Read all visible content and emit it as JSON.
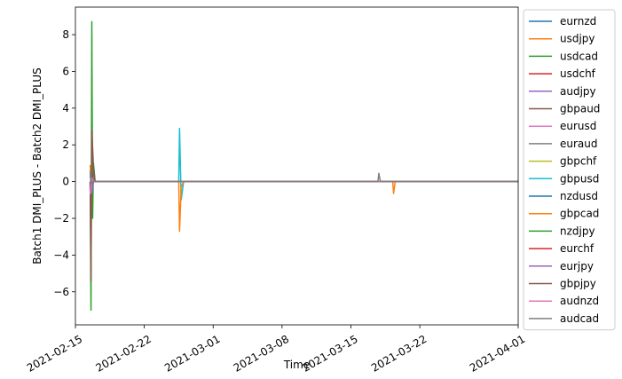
{
  "chart_data": {
    "type": "line",
    "title": "",
    "xlabel": "Time",
    "ylabel": "Batch1 DMI_PLUS - Batch2 DMI_PLUS",
    "xlim": [
      "2021-02-15",
      "2021-04-01"
    ],
    "ylim": [
      -7.8,
      9.5
    ],
    "x_ticks": [
      "2021-02-15",
      "2021-02-22",
      "2021-03-01",
      "2021-03-08",
      "2021-03-15",
      "2021-03-22",
      "2021-04-01"
    ],
    "y_ticks": [
      "−6",
      "−4",
      "−2",
      "0",
      "2",
      "4",
      "6",
      "8"
    ],
    "legend_position": "outside-right",
    "grid": false,
    "series": [
      {
        "name": "eurnzd",
        "color": "#1f77b4",
        "x": [
          "2021-02-16 12:00",
          "2021-02-16 16:00",
          "2021-02-16 20:00",
          "2021-04-01"
        ],
        "y": [
          0.2,
          0.7,
          0,
          0
        ]
      },
      {
        "name": "usdjpy",
        "color": "#ff7f0e",
        "x": [
          "2021-02-16 12:00",
          "2021-02-16 16:00",
          "2021-02-16 20:00",
          "2021-04-01"
        ],
        "y": [
          0.9,
          -0.4,
          0,
          0
        ]
      },
      {
        "name": "usdcad",
        "color": "#2ca02c",
        "x": [
          "2021-02-16 12:00",
          "2021-02-16 14:00",
          "2021-02-16 16:00",
          "2021-02-16 18:00",
          "2021-02-16 20:00",
          "2021-02-17",
          "2021-04-01"
        ],
        "y": [
          0,
          -7.0,
          8.7,
          -2.0,
          1.0,
          0,
          0
        ]
      },
      {
        "name": "usdchf",
        "color": "#d62728",
        "x": [
          "2021-02-16 12:00",
          "2021-02-16 16:00",
          "2021-02-16 20:00",
          "2021-04-01"
        ],
        "y": [
          0.5,
          -0.2,
          0,
          0
        ]
      },
      {
        "name": "audjpy",
        "color": "#9467bd",
        "x": [
          "2021-02-16 12:00",
          "2021-02-16 16:00",
          "2021-02-16 20:00",
          "2021-04-01"
        ],
        "y": [
          -0.3,
          0.6,
          0,
          0
        ]
      },
      {
        "name": "gbpaud",
        "color": "#8c564b",
        "x": [
          "2021-02-16 12:00",
          "2021-02-16 14:00",
          "2021-02-16 16:00",
          "2021-02-16 20:00",
          "2021-02-17",
          "2021-04-01"
        ],
        "y": [
          0,
          -5.4,
          2.8,
          0.8,
          0,
          0
        ]
      },
      {
        "name": "eurusd",
        "color": "#e377c2",
        "x": [
          "2021-02-16 12:00",
          "2021-02-16 16:00",
          "2021-02-16 20:00",
          "2021-04-01"
        ],
        "y": [
          -0.6,
          0.3,
          0,
          0
        ]
      },
      {
        "name": "euraud",
        "color": "#7f7f7f",
        "x": [
          "2021-02-16 12:00",
          "2021-02-16 16:00",
          "2021-02-16 20:00",
          "2021-04-01"
        ],
        "y": [
          0.3,
          -0.2,
          0,
          0
        ]
      },
      {
        "name": "gbpchf",
        "color": "#bcbd22",
        "x": [
          "2021-02-16 12:00",
          "2021-02-16 16:00",
          "2021-02-16 20:00",
          "2021-04-01"
        ],
        "y": [
          0.6,
          0.2,
          0,
          0
        ]
      },
      {
        "name": "gbpusd",
        "color": "#17becf",
        "x": [
          "2021-02-16 12:00",
          "2021-02-25 12:00",
          "2021-02-25 14:00",
          "2021-02-25 18:00",
          "2021-02-26",
          "2021-04-01"
        ],
        "y": [
          0,
          0,
          2.9,
          -1.0,
          0,
          0
        ]
      },
      {
        "name": "nzdusd",
        "color": "#1f77b4",
        "x": [
          "2021-02-16 12:00",
          "2021-02-16 16:00",
          "2021-02-16 20:00",
          "2021-04-01"
        ],
        "y": [
          -0.2,
          0.4,
          0,
          0
        ]
      },
      {
        "name": "gbpcad",
        "color": "#ff7f0e",
        "x": [
          "2021-02-16 12:00",
          "2021-02-25 12:00",
          "2021-02-25 14:00",
          "2021-02-25 18:00",
          "2021-02-26",
          "2021-03-19 06:00",
          "2021-03-19 08:00",
          "2021-03-19 12:00",
          "2021-04-01"
        ],
        "y": [
          0,
          0,
          -2.7,
          -0.3,
          0,
          0,
          -0.65,
          0,
          0
        ]
      },
      {
        "name": "nzdjpy",
        "color": "#2ca02c",
        "x": [
          "2021-02-16 12:00",
          "2021-02-16 16:00",
          "2021-02-16 20:00",
          "2021-04-01"
        ],
        "y": [
          0.4,
          -0.3,
          0,
          0
        ]
      },
      {
        "name": "eurchf",
        "color": "#d62728",
        "x": [
          "2021-02-16 12:00",
          "2021-02-16 16:00",
          "2021-02-16 20:00",
          "2021-04-01"
        ],
        "y": [
          -0.4,
          0.3,
          0,
          0
        ]
      },
      {
        "name": "eurjpy",
        "color": "#9467bd",
        "x": [
          "2021-02-16 12:00",
          "2021-02-16 16:00",
          "2021-02-16 20:00",
          "2021-04-01"
        ],
        "y": [
          0.5,
          -0.6,
          0,
          0
        ]
      },
      {
        "name": "gbpjpy",
        "color": "#8c564b",
        "x": [
          "2021-02-16 12:00",
          "2021-02-16 16:00",
          "2021-02-16 20:00",
          "2021-04-01"
        ],
        "y": [
          -0.5,
          0.5,
          0,
          0
        ]
      },
      {
        "name": "audnzd",
        "color": "#e377c2",
        "x": [
          "2021-02-16 12:00",
          "2021-02-16 16:00",
          "2021-02-16 20:00",
          "2021-04-01"
        ],
        "y": [
          -0.7,
          0.2,
          0,
          0
        ]
      },
      {
        "name": "audcad",
        "color": "#7f7f7f",
        "x": [
          "2021-02-16 12:00",
          "2021-02-16 16:00",
          "2021-02-16 20:00",
          "2021-03-17 18:00",
          "2021-03-17 20:00",
          "2021-03-18",
          "2021-04-01"
        ],
        "y": [
          0.6,
          -0.1,
          0,
          0,
          0.45,
          0,
          0
        ]
      }
    ]
  }
}
